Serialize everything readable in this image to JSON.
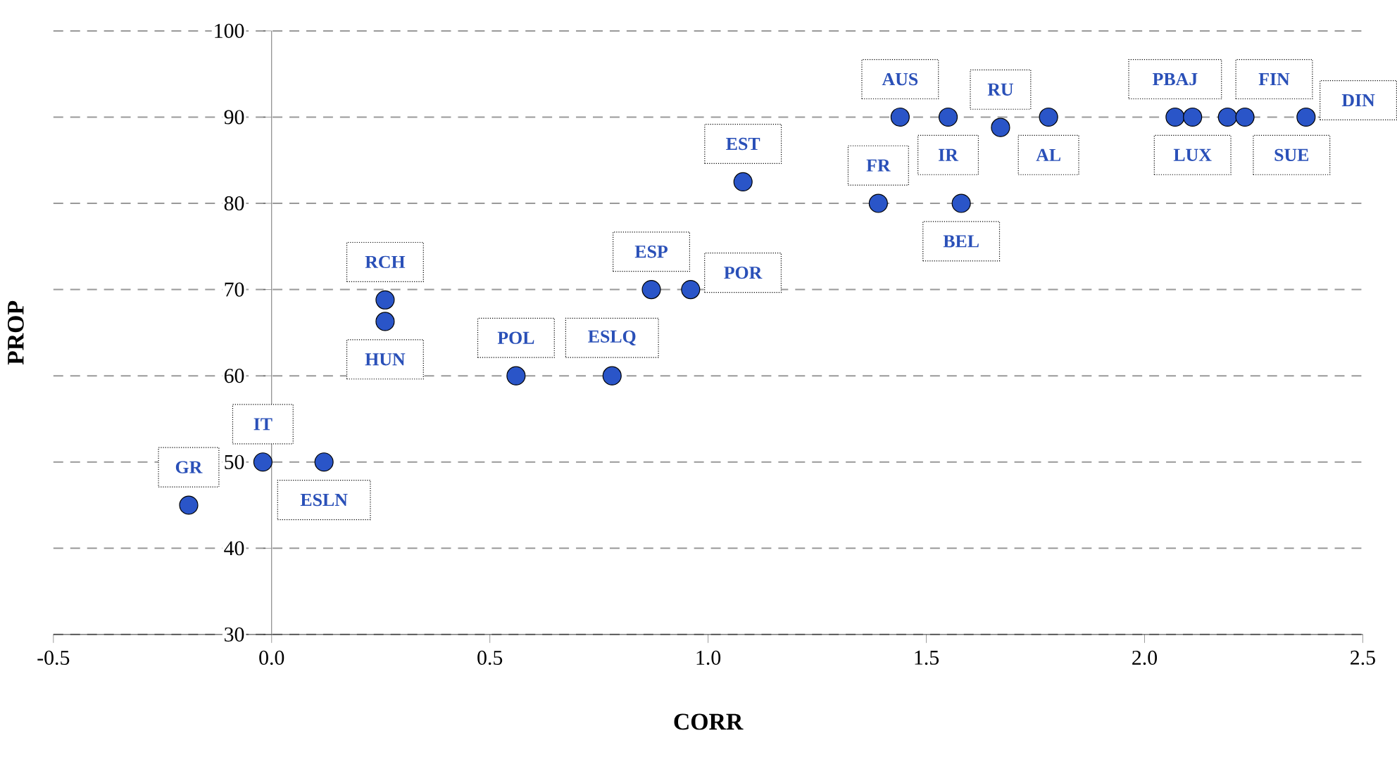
{
  "chart_data": {
    "type": "scatter",
    "xlabel": "CORR",
    "ylabel": "PROP",
    "x": [
      -0.19,
      -0.02,
      0.12,
      0.26,
      0.26,
      0.56,
      0.78,
      0.87,
      0.96,
      1.08,
      1.39,
      1.44,
      1.55,
      1.58,
      1.67,
      1.78,
      2.07,
      2.11,
      2.19,
      2.23,
      2.37
    ],
    "series": [
      {
        "color": "#2a55c8",
        "values": [
          45,
          50,
          50,
          66.3,
          68.8,
          60,
          60,
          70,
          70,
          82.5,
          80,
          90,
          90,
          80,
          88.8,
          90,
          90,
          90,
          90,
          90,
          90
        ]
      }
    ],
    "marker": "circle",
    "xlim": [
      -0.5,
      2.5
    ],
    "ylim": [
      30,
      100
    ],
    "xticks": [
      -0.5,
      {
        "value": 0,
        "label": "0.0"
      },
      0.5,
      {
        "value": 1,
        "label": "1.0"
      },
      1.5,
      {
        "value": 2,
        "label": "2.0"
      },
      2.5
    ],
    "yticks": [
      30,
      40,
      50,
      60,
      70,
      80,
      90,
      100
    ],
    "grid": "y",
    "annotations": [
      {
        "text": "GR",
        "x": -0.19,
        "y": 45
      },
      {
        "text": "IT",
        "x": -0.02,
        "y": 50
      },
      {
        "text": "ESLN",
        "x": 0.12,
        "y": 50
      },
      {
        "text": "HUN",
        "x": 0.26,
        "y": 66.3
      },
      {
        "text": "RCH",
        "x": 0.26,
        "y": 68.8
      },
      {
        "text": "POL",
        "x": 0.56,
        "y": 60
      },
      {
        "text": "ESLQ",
        "x": 0.78,
        "y": 60
      },
      {
        "text": "ESP",
        "x": 0.87,
        "y": 70
      },
      {
        "text": "POR",
        "x": 0.96,
        "y": 70
      },
      {
        "text": "EST",
        "x": 1.08,
        "y": 82.5
      },
      {
        "text": "FR",
        "x": 1.39,
        "y": 80
      },
      {
        "text": "AUS",
        "x": 1.44,
        "y": 90
      },
      {
        "text": "IR",
        "x": 1.55,
        "y": 90
      },
      {
        "text": "BEL",
        "x": 1.58,
        "y": 80
      },
      {
        "text": "RU",
        "x": 1.67,
        "y": 88.8
      },
      {
        "text": "AL",
        "x": 1.78,
        "y": 90
      },
      {
        "text": "PBAJ",
        "x": 2.07,
        "y": 90
      },
      {
        "text": "LUX",
        "x": 2.11,
        "y": 90
      },
      {
        "text": "FIN",
        "x": 2.19,
        "y": 90
      },
      {
        "text": "SUE",
        "x": 2.23,
        "y": 90
      },
      {
        "text": "DIN",
        "x": 2.37,
        "y": 90
      }
    ]
  }
}
